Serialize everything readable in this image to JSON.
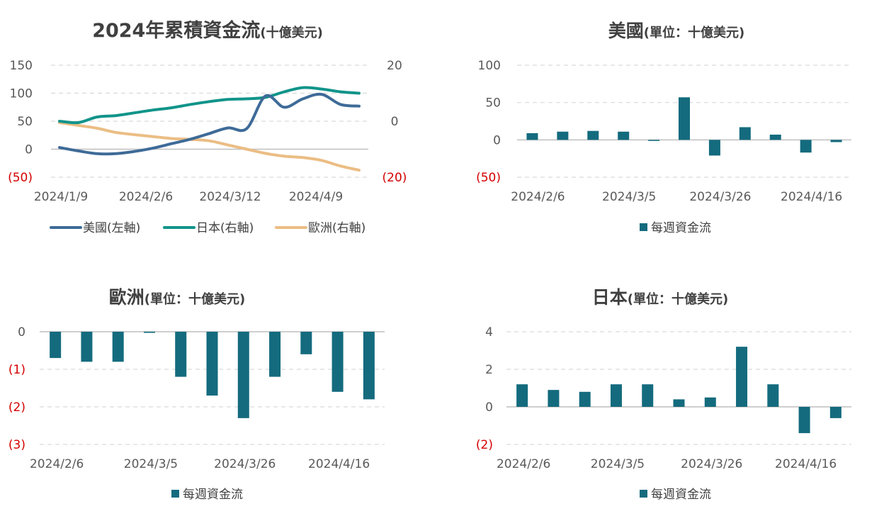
{
  "colors": {
    "us": "#3e6b98",
    "japan": "#11948a",
    "europe": "#ebbd84",
    "bar": "#146b7e",
    "axis_text": "#595959",
    "negative_text": "#d40000",
    "grid": "#d9d9d9"
  },
  "charts": {
    "main": {
      "title_main": "2024年累積資金流",
      "title_unit": "(十億美元)",
      "legend": [
        "美國(左軸)",
        "日本(右軸)",
        "歐洲(右軸)"
      ],
      "left_ticks": [
        "150",
        "100",
        "50",
        "0",
        "(50)"
      ],
      "right_ticks": [
        "20",
        "0",
        "(20)"
      ],
      "x_labels": [
        "2024/1/9",
        "2024/2/6",
        "2024/3/12",
        "2024/4/9"
      ]
    },
    "us": {
      "title_main": "美國",
      "title_unit": "(單位：十億美元)",
      "legend": "每週資金流",
      "y_ticks": [
        "100",
        "50",
        "0",
        "(50)"
      ],
      "x_labels": [
        "2024/2/6",
        "2024/3/5",
        "2024/3/26",
        "2024/4/16"
      ]
    },
    "europe": {
      "title_main": "歐洲",
      "title_unit": "(單位：十億美元)",
      "legend": "每週資金流",
      "y_ticks": [
        "0",
        "(1)",
        "(2)",
        "(3)"
      ],
      "x_labels": [
        "2024/2/6",
        "2024/3/5",
        "2024/3/26",
        "2024/4/16"
      ]
    },
    "japan": {
      "title_main": "日本",
      "title_unit": "(單位：十億美元)",
      "legend": "每週資金流",
      "y_ticks": [
        "4",
        "2",
        "0",
        "(2)"
      ],
      "x_labels": [
        "2024/2/6",
        "2024/3/5",
        "2024/3/26",
        "2024/4/16"
      ]
    }
  },
  "chart_data": [
    {
      "type": "line",
      "title": "2024年累積資金流(十億美元)",
      "x_ticks": [
        "2024/1/9",
        "2024/2/6",
        "2024/3/12",
        "2024/4/9"
      ],
      "y_left_lim": [
        -50,
        150
      ],
      "y_right_lim": [
        -20,
        20
      ],
      "grid": true,
      "legend_position": "bottom",
      "series": [
        {
          "name": "美國(左軸)",
          "axis": "left",
          "values": [
            3,
            -3,
            -8,
            -8,
            -4,
            2,
            10,
            18,
            28,
            38,
            37,
            95,
            75,
            90,
            98,
            80,
            77
          ]
        },
        {
          "name": "日本(右軸)",
          "axis": "right",
          "values": [
            0,
            -0.5,
            1.5,
            2,
            3,
            4,
            4.8,
            6,
            7,
            7.8,
            8,
            8.5,
            10.5,
            12,
            11.5,
            10.5,
            10
          ]
        },
        {
          "name": "歐洲(右軸)",
          "axis": "right",
          "values": [
            -0.5,
            -1.5,
            -2.5,
            -4,
            -4.8,
            -5.5,
            -6.2,
            -6.5,
            -7,
            -8.5,
            -10,
            -11.5,
            -12.5,
            -13,
            -14,
            -16,
            -17.5
          ]
        }
      ]
    },
    {
      "type": "bar",
      "title": "美國(單位：十億美元)",
      "categories": [
        "2024/2/6",
        "",
        "",
        "",
        "2024/3/5",
        "",
        "",
        "2024/3/26",
        "",
        "",
        "2024/4/16"
      ],
      "ylim": [
        -50,
        100
      ],
      "legend_position": "bottom",
      "series": [
        {
          "name": "每週資金流",
          "values": [
            9,
            11,
            12,
            11,
            0,
            57,
            -21,
            17,
            7,
            -17,
            -3
          ]
        }
      ]
    },
    {
      "type": "bar",
      "title": "歐洲(單位：十億美元)",
      "categories": [
        "2024/2/6",
        "",
        "",
        "",
        "2024/3/5",
        "",
        "",
        "2024/3/26",
        "",
        "",
        "2024/4/16"
      ],
      "ylim": [
        -3,
        0
      ],
      "legend_position": "bottom",
      "series": [
        {
          "name": "每週資金流",
          "values": [
            -0.7,
            -0.8,
            -0.8,
            -0.03,
            -1.2,
            -1.7,
            -2.3,
            -1.2,
            -0.6,
            -1.6,
            -1.8
          ]
        }
      ]
    },
    {
      "type": "bar",
      "title": "日本(單位：十億美元)",
      "categories": [
        "2024/2/6",
        "",
        "",
        "",
        "2024/3/5",
        "",
        "",
        "2024/3/26",
        "",
        "",
        "2024/4/16"
      ],
      "ylim": [
        -2,
        4
      ],
      "legend_position": "bottom",
      "series": [
        {
          "name": "每週資金流",
          "values": [
            1.2,
            0.9,
            0.8,
            1.2,
            1.2,
            0.4,
            0.5,
            3.2,
            1.2,
            -1.4,
            -0.6
          ]
        }
      ]
    }
  ]
}
